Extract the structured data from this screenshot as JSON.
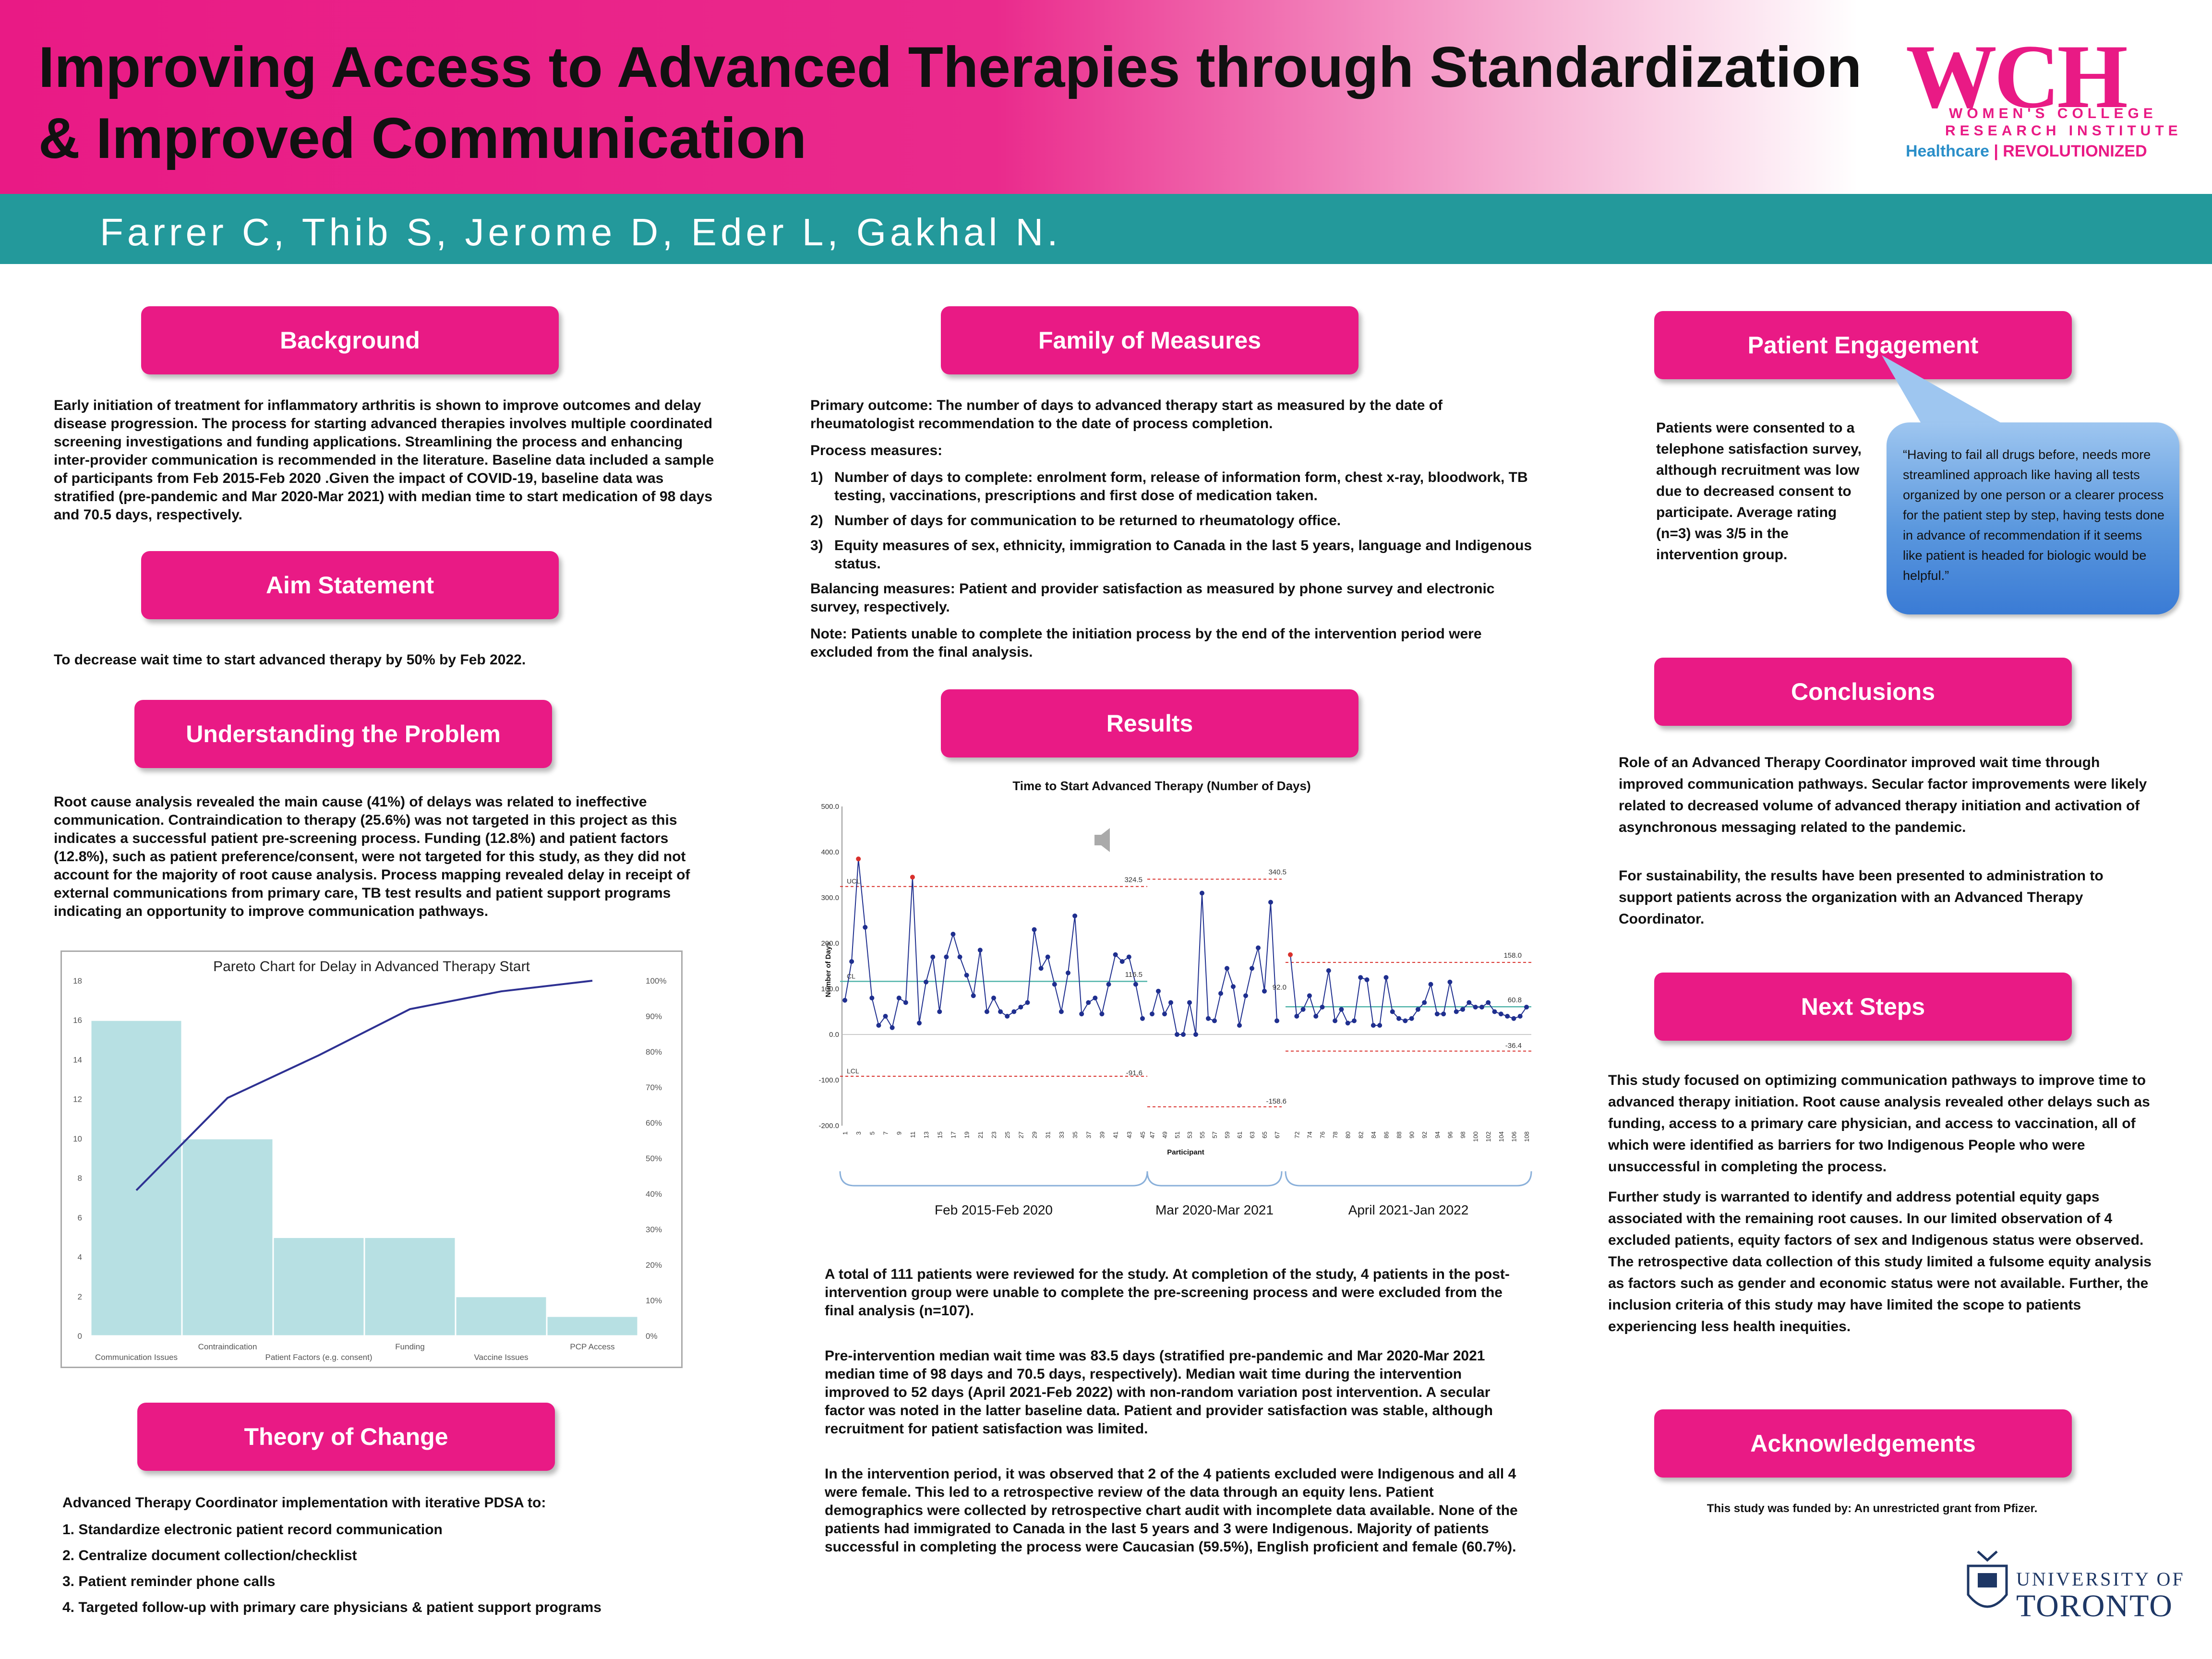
{
  "header": {
    "title": "Improving Access to Advanced Therapies through Standardization & Improved Communication",
    "authors": "Farrer C, Thib S, Jerome D, Eder L, Gakhal N.",
    "logo": {
      "wch": "WCH",
      "line1": "WOMEN'S COLLEGE",
      "line2": "RESEARCH INSTITUTE",
      "tagline_a": "Healthcare",
      "tagline_b": "REVOLUTIONIZED"
    }
  },
  "background": {
    "heading": "Background",
    "text": "Early initiation of treatment for inflammatory arthritis is shown to improve outcomes and delay disease progression. The process for starting advanced therapies involves multiple coordinated screening investigations and funding applications. Streamlining the process and enhancing inter-provider communication is recommended in the literature. Baseline data included a sample of participants from Feb 2015-Feb 2020 .Given the impact of COVID-19, baseline data was stratified (pre-pandemic and Mar 2020-Mar 2021) with median time to start medication of 98 days and 70.5 days, respectively."
  },
  "aim": {
    "heading": "Aim Statement",
    "text": "To decrease wait time to start advanced therapy by 50% by Feb 2022."
  },
  "problem": {
    "heading": "Understanding the Problem",
    "text": "Root cause analysis revealed the main cause (41%) of delays was related to ineffective communication. Contraindication to therapy (25.6%) was not targeted in this project as this indicates a successful patient pre-screening process. Funding (12.8%) and patient factors (12.8%), such as patient preference/consent, were not targeted for this study, as they did not account for the majority of root cause analysis. Process mapping revealed delay in receipt of external communications from primary care, TB test results and patient support programs indicating an opportunity to improve communication pathways."
  },
  "theory": {
    "heading": "Theory of Change",
    "intro": "Advanced Therapy Coordinator implementation with iterative PDSA to:",
    "items": [
      "1. Standardize electronic patient record communication",
      "2. Centralize document collection/checklist",
      "3. Patient reminder phone calls",
      "4. Targeted follow-up with primary care physicians & patient support programs"
    ]
  },
  "measures": {
    "heading": "Family of Measures",
    "primary": "Primary outcome: The number of days to advanced therapy start as measured by the date of rheumatologist recommendation to the date of process completion.",
    "process_label": "Process measures:",
    "items": [
      {
        "num": "1)",
        "text": "Number of days to complete: enrolment form, release of information form, chest x-ray, bloodwork, TB testing, vaccinations, prescriptions and first dose of medication taken."
      },
      {
        "num": "2)",
        "text": "Number of days for communication to be returned to rheumatology office."
      },
      {
        "num": "3)",
        "text": "Equity measures of sex, ethnicity, immigration to Canada in the last 5 years, language and Indigenous status."
      }
    ],
    "balancing": "Balancing measures: Patient and provider satisfaction as measured by phone survey and electronic survey, respectively.",
    "note": "Note: Patients unable to complete the initiation process by the end of the intervention period were excluded from the final analysis."
  },
  "results": {
    "heading": "Results",
    "p1": "A total of 111 patients were reviewed for the study. At completion of the study, 4 patients in the post-intervention group were unable to complete the pre-screening process and were excluded from the final analysis (n=107).",
    "p2": "Pre-intervention median wait time was 83.5 days (stratified pre-pandemic and Mar 2020-Mar 2021 median time of 98 days and 70.5 days, respectively). Median wait time during the intervention improved to 52 days (April 2021-Feb 2022) with non-random variation post intervention. A secular factor was noted in the latter baseline data. Patient and provider satisfaction was stable, although recruitment for patient satisfaction was limited.",
    "p3": "In the intervention period, it was observed that 2 of the 4 patients excluded were Indigenous and all 4 were female. This led to a retrospective review of the data through an equity lens. Patient demographics were collected by retrospective chart audit with incomplete data available. None of the patients had immigrated to Canada in the last 5 years and 3 were Indigenous. Majority of patients successful in completing the process were Caucasian (59.5%), English proficient and female (60.7%)."
  },
  "engagement": {
    "heading": "Patient Engagement",
    "text": "Patients were consented to a telephone satisfaction survey, although recruitment was low due to decreased consent to participate. Average rating (n=3) was 3/5 in the intervention group.",
    "quote": "“Having to fail all drugs before, needs more streamlined approach like having all tests organized by one person or a clearer process for the patient step by step, having tests done in advance of recommendation if it seems like patient is headed for biologic would be helpful.”"
  },
  "conclusions": {
    "heading": "Conclusions",
    "p1": "Role of an Advanced Therapy Coordinator improved wait time through improved communication pathways. Secular factor improvements were likely related to decreased volume of advanced therapy initiation and activation of asynchronous messaging related to the pandemic.",
    "p2": "For sustainability, the results have been presented to administration to support patients across the organization with an Advanced Therapy Coordinator."
  },
  "next_steps": {
    "heading": "Next Steps",
    "p1": "This study focused on optimizing communication pathways to improve time to advanced therapy initiation. Root cause analysis revealed other delays such as funding, access to a primary care physician, and access to vaccination, all of which were identified as barriers for two Indigenous People who were unsuccessful in completing the process.",
    "p2": "Further study is warranted to identify and address potential equity gaps associated with the remaining root causes. In our limited observation of 4 excluded patients, equity factors of sex and Indigenous status were observed. The retrospective data collection of this study limited a fulsome equity analysis as factors such as gender and economic status were not available. Further, the inclusion criteria of this study may have limited the scope to patients experiencing less health inequities."
  },
  "acknowledgements": {
    "heading": "Acknowledgements",
    "text": "This study was funded by: An unrestricted grant from Pfizer."
  },
  "uoft": {
    "line1": "UNIVERSITY OF",
    "line2": "TORONTO"
  },
  "colors": {
    "pink": "#e91a85",
    "teal": "#23999b",
    "bar": "#b7e0e3",
    "line": "#2e3192"
  },
  "chart_data": [
    {
      "type": "bar",
      "title": "Pareto Chart for Delay in Advanced Therapy Start",
      "categories": [
        "Communication Issues",
        "Contraindication",
        "Patient Factors (e.g. consent)",
        "Funding",
        "Vaccine Issues",
        "PCP Access"
      ],
      "values": [
        16,
        10,
        5,
        5,
        2,
        1
      ],
      "cumulative_percent": [
        41,
        67,
        79,
        92,
        97,
        100
      ],
      "ylim": [
        0,
        18
      ],
      "yticks": [
        0,
        2,
        4,
        6,
        8,
        10,
        12,
        14,
        16,
        18
      ],
      "y2ticks": [
        "0%",
        "10%",
        "20%",
        "30%",
        "40%",
        "50%",
        "60%",
        "70%",
        "80%",
        "90%",
        "100%"
      ]
    },
    {
      "type": "line",
      "title": "Time to Start Advanced Therapy (Number of Days)",
      "xlabel": "Participant",
      "ylabel": "Number of Days",
      "ylim": [
        -200,
        500
      ],
      "yticks": [
        "500.0",
        "400.0",
        "300.0",
        "200.0",
        "100.0",
        "0.0",
        "-100.0",
        "-200.0"
      ],
      "series": [
        {
          "x": [
            1,
            2,
            3,
            4,
            5,
            6,
            7,
            8,
            9,
            10,
            11,
            12,
            13,
            14,
            15,
            16,
            17,
            18,
            19,
            20,
            21,
            22,
            23,
            24,
            25,
            26,
            27,
            28,
            29,
            30,
            31,
            32,
            33,
            34,
            35,
            36,
            37,
            38,
            39,
            40,
            41,
            42,
            43,
            44,
            45
          ],
          "values": [
            75,
            160,
            385,
            235,
            80,
            20,
            40,
            15,
            80,
            70,
            345,
            25,
            115,
            170,
            50,
            170,
            220,
            170,
            130,
            85,
            185,
            50,
            80,
            50,
            40,
            50,
            60,
            70,
            230,
            145,
            170,
            110,
            50,
            135,
            260,
            45,
            70,
            80,
            45,
            110,
            175,
            160,
            170,
            110,
            35
          ],
          "ucl": 324.5,
          "cl": 116.5,
          "lcl": -91.6,
          "period": "Feb 2015-Feb 2020"
        },
        {
          "x": [
            47,
            48,
            49,
            50,
            51,
            52,
            53,
            54,
            55,
            56,
            57,
            58,
            59,
            60,
            61,
            62,
            63,
            64,
            65,
            66,
            67
          ],
          "values": [
            45,
            95,
            45,
            70,
            0,
            0,
            70,
            0,
            310,
            35,
            30,
            90,
            145,
            105,
            20,
            85,
            145,
            190,
            95,
            290,
            30
          ],
          "ucl": 340.5,
          "lcl": -158.6,
          "period": "Mar 2020-Mar 2021"
        },
        {
          "x": [
            71,
            72,
            73,
            74,
            75,
            76,
            77,
            78,
            79,
            80,
            81,
            82,
            83,
            84,
            85,
            86,
            87,
            88,
            89,
            90,
            91,
            92,
            93,
            94,
            95,
            96,
            97,
            98,
            99,
            100,
            101,
            102,
            103,
            104,
            105,
            106,
            107,
            108
          ],
          "values": [
            175,
            40,
            55,
            85,
            40,
            60,
            140,
            30,
            55,
            25,
            30,
            125,
            120,
            20,
            20,
            125,
            50,
            35,
            30,
            35,
            55,
            70,
            110,
            45,
            45,
            115,
            50,
            55,
            70,
            60,
            60,
            70,
            50,
            45,
            40,
            35,
            40,
            60
          ],
          "ucl": 158.0,
          "cl": 60.8,
          "lcl": -36.4,
          "period": "April 2021-Jan 2022"
        }
      ],
      "line_labels": [
        "UCL",
        "CL",
        "LCL"
      ],
      "value_labels": [
        "324.5",
        "116.5",
        "-91.6",
        "340.5",
        "92.0",
        "-158.6",
        "158.0",
        "60.8",
        "-36.4"
      ],
      "xticks": [
        "1",
        "3",
        "5",
        "7",
        "9",
        "11",
        "13",
        "15",
        "17",
        "19",
        "21",
        "23",
        "25",
        "27",
        "29",
        "31",
        "33",
        "35",
        "37",
        "39",
        "41",
        "43",
        "45",
        "47",
        "49",
        "51",
        "53",
        "55",
        "57",
        "59",
        "61",
        "63",
        "65",
        "67",
        "72",
        "74",
        "76",
        "78",
        "80",
        "82",
        "84",
        "86",
        "88",
        "90",
        "92",
        "94",
        "96",
        "98",
        "100",
        "102",
        "104",
        "106",
        "108"
      ]
    }
  ]
}
